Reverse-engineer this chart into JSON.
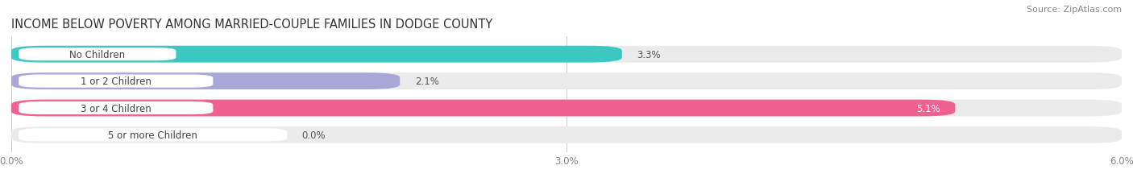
{
  "title": "INCOME BELOW POVERTY AMONG MARRIED-COUPLE FAMILIES IN DODGE COUNTY",
  "source": "Source: ZipAtlas.com",
  "categories": [
    "No Children",
    "1 or 2 Children",
    "3 or 4 Children",
    "5 or more Children"
  ],
  "values": [
    3.3,
    2.1,
    5.1,
    0.0
  ],
  "value_labels": [
    "3.3%",
    "2.1%",
    "5.1%",
    "0.0%"
  ],
  "bar_colors": [
    "#3cc8c0",
    "#a8a8d8",
    "#f06090",
    "#f5c89a"
  ],
  "bar_bg_color": "#ebebeb",
  "xlim": [
    0,
    6.0
  ],
  "xticks": [
    0.0,
    3.0,
    6.0
  ],
  "xtick_labels": [
    "0.0%",
    "3.0%",
    "6.0%"
  ],
  "title_fontsize": 10.5,
  "source_fontsize": 8,
  "label_fontsize": 8.5,
  "value_fontsize": 8.5,
  "bar_height": 0.62,
  "figsize": [
    14.06,
    2.32
  ],
  "dpi": 100,
  "bg_color": "#ffffff",
  "value_inside_threshold": 4.5
}
